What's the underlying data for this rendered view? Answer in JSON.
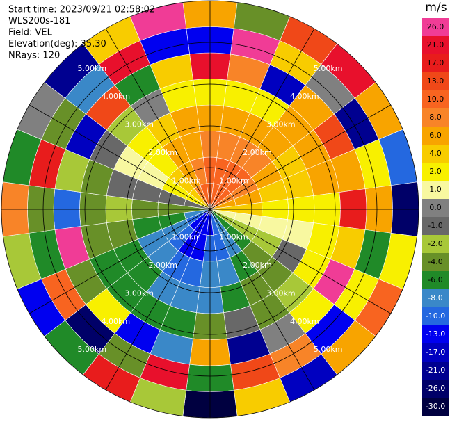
{
  "chart_data": {
    "type": "ppi",
    "texts": [
      "Start time: 2023/09/21 02:58:02",
      "WLS200s-181",
      "Field: VEL",
      "Elevation(deg): 35.30",
      "NRays: 120"
    ],
    "units": "m/s",
    "range_rings": [
      {
        "value": 1,
        "label": "1.00km"
      },
      {
        "value": 2,
        "label": "2.00km"
      },
      {
        "value": 3,
        "label": "3.00km"
      },
      {
        "value": 4,
        "label": "4.00km"
      },
      {
        "value": 5,
        "label": "5.00km"
      }
    ],
    "colorbar": [
      {
        "value": 26,
        "label": "26.0"
      },
      {
        "value": 21,
        "label": "21.0"
      },
      {
        "value": 17,
        "label": "17.0"
      },
      {
        "value": 13,
        "label": "13.0"
      },
      {
        "value": 10,
        "label": "10.0"
      },
      {
        "value": 8,
        "label": "8.0"
      },
      {
        "value": 6,
        "label": "6.0"
      },
      {
        "value": 4,
        "label": "4.0"
      },
      {
        "value": 2,
        "label": "2.0"
      },
      {
        "value": 1,
        "label": "1.0"
      },
      {
        "value": 0,
        "label": "0.0"
      },
      {
        "value": -1,
        "label": "-1.0"
      },
      {
        "value": -2,
        "label": "-2.0"
      },
      {
        "value": -4,
        "label": "-4.0"
      },
      {
        "value": -6,
        "label": "-6.0"
      },
      {
        "value": -8,
        "label": "-8.0"
      },
      {
        "value": -10,
        "label": "-10.0"
      },
      {
        "value": -13,
        "label": "-13.0"
      },
      {
        "value": -17,
        "label": "-17.0"
      },
      {
        "value": -21,
        "label": "-21.0"
      },
      {
        "value": -26,
        "label": "-26.0"
      },
      {
        "value": -30,
        "label": "-30.0"
      }
    ],
    "colors": [
      "#f03c96",
      "#e8102c",
      "#e81c1c",
      "#f04818",
      "#f86420",
      "#f88428",
      "#f8a400",
      "#f8cc00",
      "#f8f000",
      "#f8f8a0",
      "#808080",
      "#686868",
      "#a8c838",
      "#689028",
      "#208a28",
      "#3a88c8",
      "#2468e0",
      "#0000f0",
      "#0000c0",
      "#000090",
      "#000068",
      "#000040"
    ],
    "field": [
      [
        11,
        10,
        8,
        7,
        3,
        21,
        -13,
        6
      ],
      [
        12,
        11,
        9,
        7,
        2,
        8,
        26,
        -4
      ],
      [
        12,
        11,
        9,
        7,
        3,
        -17,
        4,
        13
      ],
      [
        11,
        10,
        8,
        6,
        6,
        6,
        0,
        21
      ],
      [
        9,
        8,
        7,
        5,
        6,
        13,
        -21,
        6
      ],
      [
        7,
        6,
        5,
        4,
        6,
        6,
        2,
        -10
      ],
      [
        4,
        4,
        3,
        2,
        2,
        17,
        6,
        -26
      ],
      [
        1,
        1,
        1,
        1,
        2,
        4,
        -6,
        2
      ],
      [
        -2,
        -2,
        -2,
        -1,
        2,
        26,
        2,
        10
      ],
      [
        -5,
        -5,
        -4,
        -3,
        -2,
        2,
        -13,
        6
      ],
      [
        -8,
        -7,
        -6,
        -4,
        -3,
        0,
        8,
        -17
      ],
      [
        -10,
        -9,
        -7,
        -6,
        -1,
        -21,
        13,
        4
      ],
      [
        -11,
        -10,
        -8,
        -7,
        -4,
        6,
        -6,
        -30
      ],
      [
        -12,
        -11,
        -9,
        -7,
        -6,
        -8,
        21,
        -2
      ],
      [
        -12,
        -11,
        -9,
        -7,
        -6,
        -13,
        -4,
        17
      ],
      [
        -11,
        -10,
        -8,
        -6,
        -6,
        2,
        -26,
        -6
      ],
      [
        -9,
        -8,
        -7,
        -5,
        -6,
        -4,
        10,
        -13
      ],
      [
        -7,
        -6,
        -5,
        -4,
        -4,
        26,
        -6,
        -2
      ],
      [
        -4,
        -4,
        -3,
        -2,
        -4,
        -10,
        -4,
        8
      ],
      [
        -1,
        -1,
        -1,
        -1,
        -4,
        -2,
        17,
        -6
      ],
      [
        2,
        2,
        1,
        1,
        -1,
        -17,
        -4,
        0
      ],
      [
        5,
        4,
        3,
        3,
        -2,
        13,
        -8,
        -21
      ],
      [
        8,
        7,
        6,
        4,
        0,
        -6,
        21,
        4
      ],
      [
        10,
        9,
        7,
        6,
        2,
        4,
        -13,
        26
      ]
    ]
  }
}
